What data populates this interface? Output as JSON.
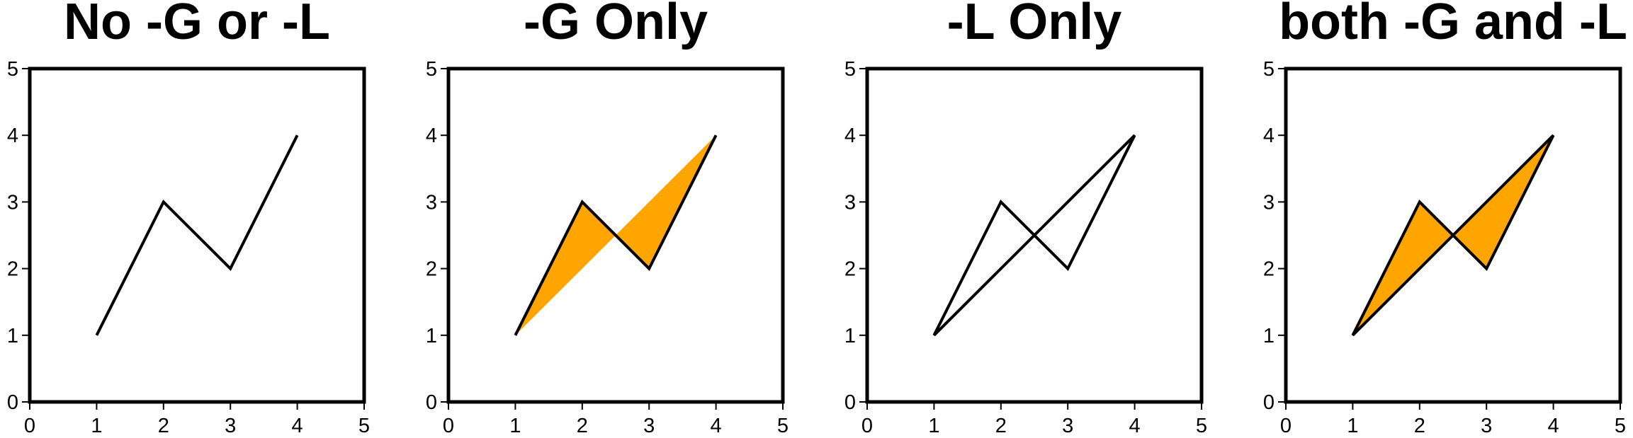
{
  "chart_data": [
    {
      "type": "line",
      "title": "No -G or -L",
      "x": [
        1,
        2,
        3,
        4
      ],
      "y": [
        1,
        3,
        2,
        4
      ],
      "xlim": [
        0,
        5
      ],
      "ylim": [
        0,
        5
      ],
      "xticks": [
        "0",
        "1",
        "2",
        "3",
        "4",
        "5"
      ],
      "yticks": [
        "0",
        "1",
        "2",
        "3",
        "4",
        "5"
      ],
      "fill": null,
      "close_to": null,
      "line_color": "#000000"
    },
    {
      "type": "area",
      "title": "-G Only",
      "x": [
        1,
        2,
        3,
        4
      ],
      "y": [
        1,
        3,
        2,
        4
      ],
      "xlim": [
        0,
        5
      ],
      "ylim": [
        0,
        5
      ],
      "xticks": [
        "0",
        "1",
        "2",
        "3",
        "4",
        "5"
      ],
      "yticks": [
        "0",
        "1",
        "2",
        "3",
        "4",
        "5"
      ],
      "fill": "#ffa500",
      "close_to": null,
      "line_color": "#000000"
    },
    {
      "type": "line",
      "title": "-L Only",
      "x": [
        1,
        2,
        3,
        4
      ],
      "y": [
        1,
        3,
        2,
        4
      ],
      "xlim": [
        0,
        5
      ],
      "ylim": [
        0,
        5
      ],
      "xticks": [
        "0",
        "1",
        "2",
        "3",
        "4",
        "5"
      ],
      "yticks": [
        "0",
        "1",
        "2",
        "3",
        "4",
        "5"
      ],
      "fill": null,
      "close_to": "first",
      "line_color": "#000000"
    },
    {
      "type": "area",
      "title": "both -G and -L",
      "x": [
        1,
        2,
        3,
        4
      ],
      "y": [
        1,
        3,
        2,
        4
      ],
      "xlim": [
        0,
        5
      ],
      "ylim": [
        0,
        5
      ],
      "xticks": [
        "0",
        "1",
        "2",
        "3",
        "4",
        "5"
      ],
      "yticks": [
        "0",
        "1",
        "2",
        "3",
        "4",
        "5"
      ],
      "fill": "#ffa500",
      "close_to": "first",
      "line_color": "#000000"
    }
  ]
}
